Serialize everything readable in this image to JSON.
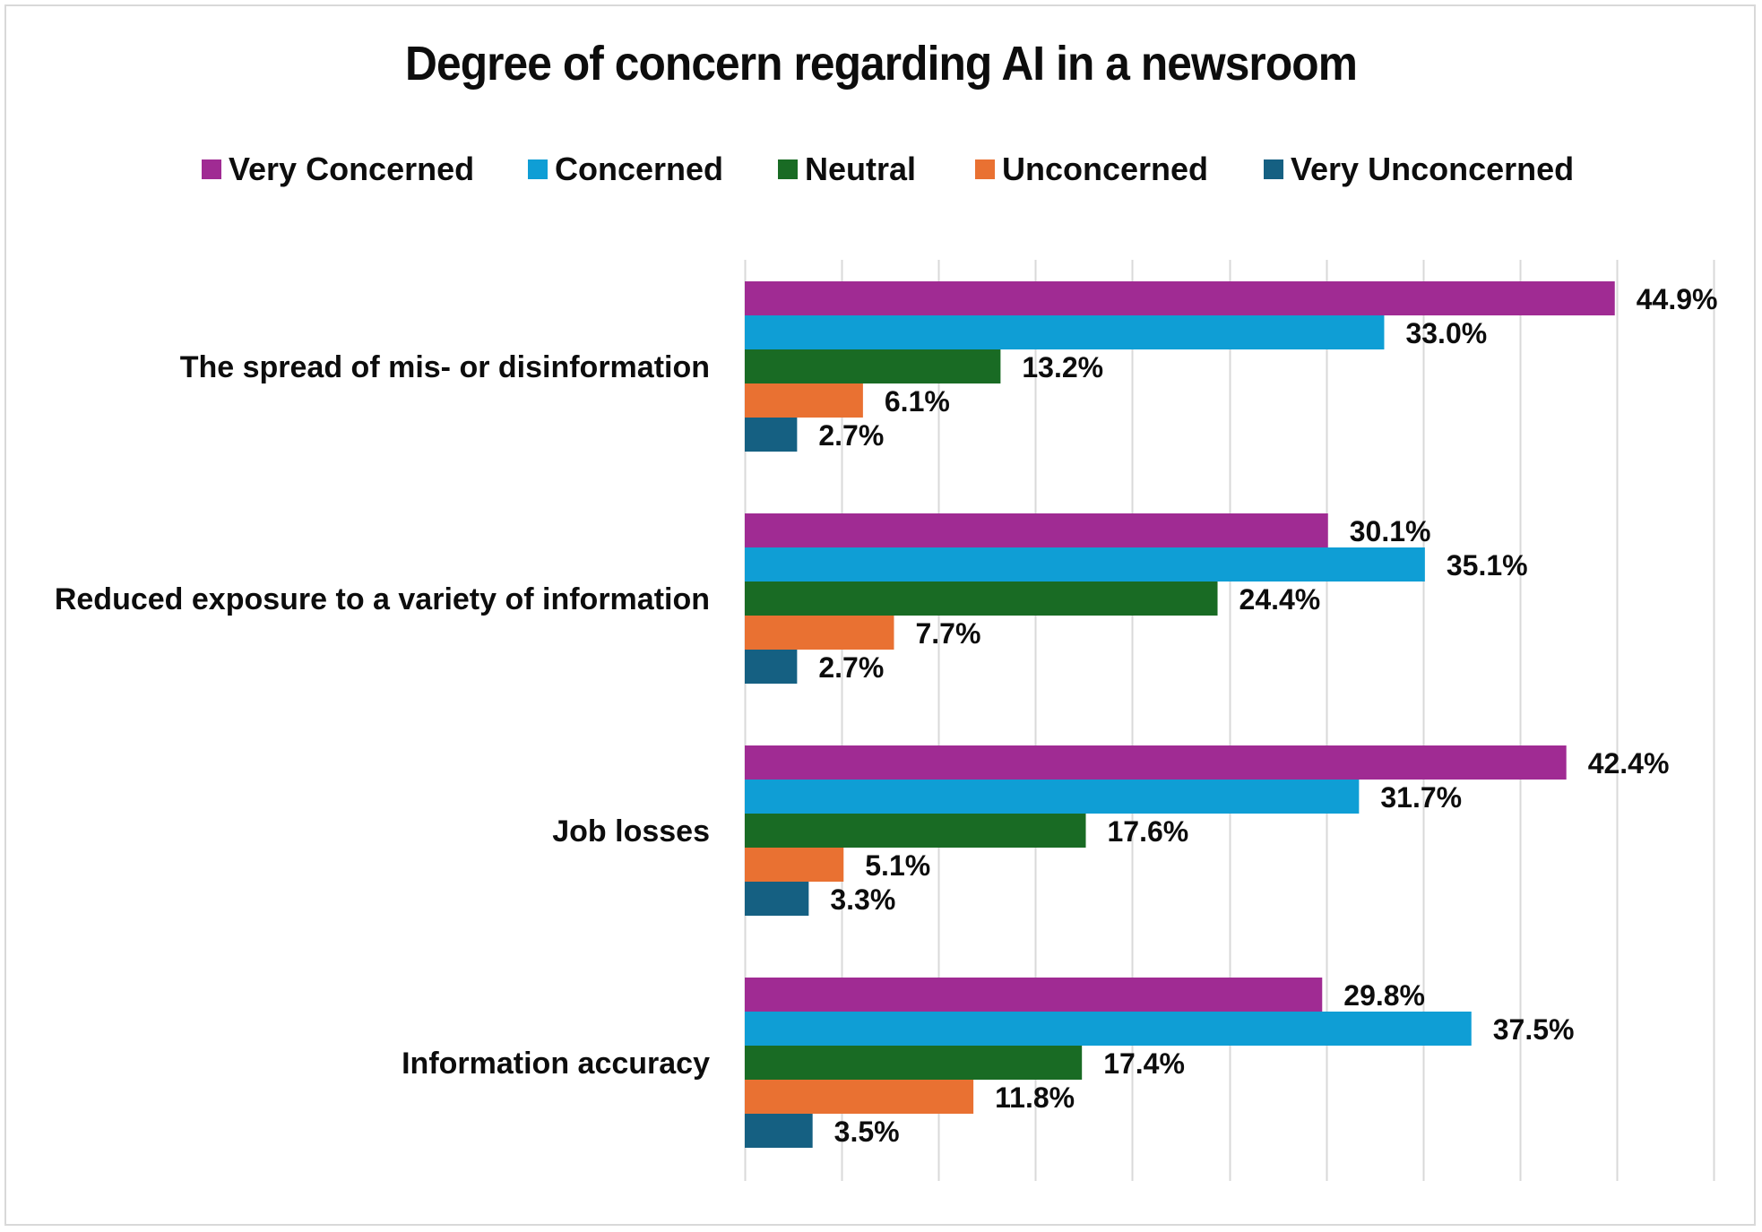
{
  "chart_data": {
    "type": "bar",
    "orientation": "horizontal",
    "title": "Degree of concern regarding AI in a newsroom",
    "xlabel": "",
    "ylabel": "",
    "xlim": [
      0,
      50
    ],
    "grid": true,
    "legend_position": "top",
    "categories": [
      "The spread of mis- or disinformation",
      "Reduced exposure to a variety of information",
      "Job losses",
      "Information accuracy"
    ],
    "series": [
      {
        "name": "Very Concerned",
        "color": "#A02B93",
        "values": [
          44.9,
          30.1,
          42.4,
          29.8
        ],
        "labels": [
          "44.9%",
          "30.1%",
          "42.4%",
          "29.8%"
        ]
      },
      {
        "name": "Concerned",
        "color": "#0F9ED5",
        "values": [
          33.0,
          35.1,
          31.7,
          37.5
        ],
        "labels": [
          "33.0%",
          "35.1%",
          "31.7%",
          "37.5%"
        ]
      },
      {
        "name": "Neutral",
        "color": "#196B24",
        "values": [
          13.2,
          24.4,
          17.6,
          17.4
        ],
        "labels": [
          "13.2%",
          "24.4%",
          "17.6%",
          "17.4%"
        ]
      },
      {
        "name": "Unconcerned",
        "color": "#E97132",
        "values": [
          6.1,
          7.7,
          5.1,
          11.8
        ],
        "labels": [
          "6.1%",
          "7.7%",
          "5.1%",
          "11.8%"
        ]
      },
      {
        "name": "Very Unconcerned",
        "color": "#156082",
        "values": [
          2.7,
          2.7,
          3.3,
          3.5
        ],
        "labels": [
          "2.7%",
          "2.7%",
          "3.3%",
          "3.5%"
        ]
      }
    ],
    "gridline_color": "#d9d9d9"
  }
}
